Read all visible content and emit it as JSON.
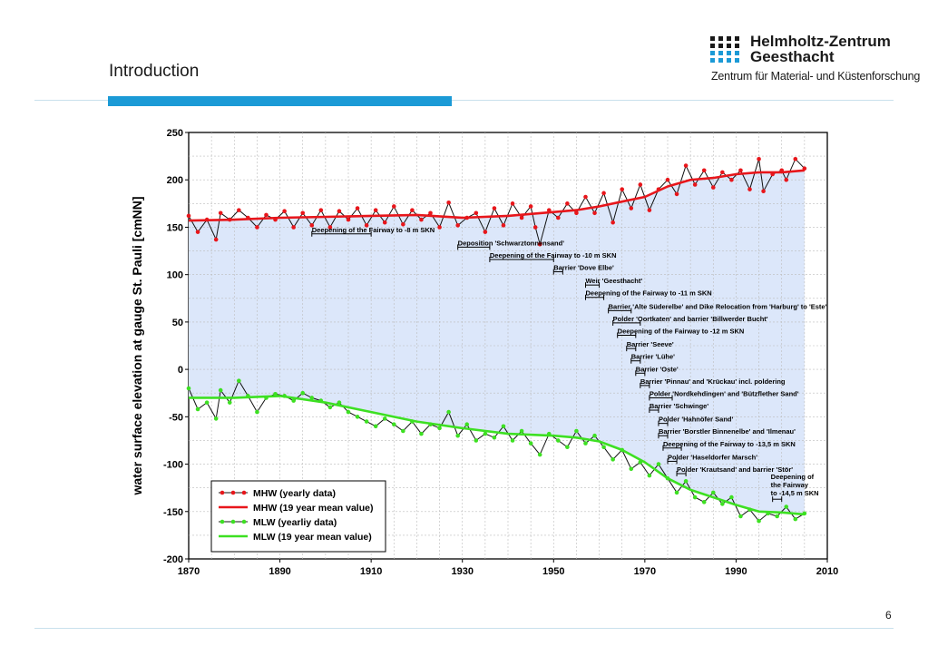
{
  "slide": {
    "title": "Introduction",
    "page_number": "6"
  },
  "logo": {
    "name_line1": "Helmholtz-Zentrum",
    "name_line2": "Geesthacht",
    "subtitle": "Zentrum für Material- und Küstenforschung"
  },
  "colors": {
    "accent": "#1b9ad6",
    "mhw": "#e8161b",
    "mlw": "#3de022",
    "fill_between": "#dce7fa"
  },
  "chart_data": {
    "type": "line",
    "xlim": [
      1870,
      2010
    ],
    "ylim": [
      -200,
      250
    ],
    "xticks": [
      1870,
      1890,
      1910,
      1930,
      1950,
      1970,
      1990,
      2010
    ],
    "yticks": [
      250,
      200,
      150,
      100,
      50,
      0,
      -50,
      -100,
      -150,
      -200
    ],
    "ylabel": "water surface elevation at gauge St. Pauli [cmNN]",
    "xlabel": "",
    "grid": true,
    "legend_position": "bottom-left",
    "fill_between_series": [
      "MHW (19 year mean value)",
      "MLW (19 year mean value)"
    ],
    "series": [
      {
        "name": "MHW (yearly data)",
        "style": "line-markers",
        "x": [
          1870,
          1872,
          1874,
          1876,
          1877,
          1879,
          1881,
          1883,
          1885,
          1887,
          1889,
          1891,
          1893,
          1895,
          1897,
          1899,
          1901,
          1903,
          1905,
          1907,
          1909,
          1911,
          1913,
          1915,
          1917,
          1919,
          1921,
          1923,
          1925,
          1927,
          1929,
          1931,
          1933,
          1935,
          1937,
          1939,
          1941,
          1943,
          1945,
          1946,
          1947,
          1949,
          1951,
          1953,
          1955,
          1957,
          1959,
          1961,
          1963,
          1965,
          1967,
          1969,
          1971,
          1973,
          1975,
          1977,
          1979,
          1981,
          1983,
          1985,
          1987,
          1989,
          1991,
          1993,
          1995,
          1996,
          1998,
          2000,
          2001,
          2003,
          2005
        ],
        "values": [
          162,
          145,
          158,
          137,
          165,
          158,
          168,
          160,
          150,
          163,
          158,
          167,
          150,
          165,
          152,
          168,
          150,
          167,
          158,
          170,
          152,
          168,
          155,
          172,
          153,
          168,
          158,
          165,
          150,
          176,
          152,
          160,
          165,
          145,
          170,
          152,
          175,
          160,
          172,
          150,
          132,
          168,
          160,
          175,
          165,
          182,
          165,
          186,
          155,
          190,
          170,
          195,
          168,
          190,
          200,
          185,
          215,
          195,
          210,
          192,
          208,
          200,
          210,
          190,
          222,
          188,
          206,
          210,
          200,
          222,
          212
        ]
      },
      {
        "name": "MHW (19 year mean value)",
        "style": "line",
        "x": [
          1870,
          1880,
          1890,
          1900,
          1910,
          1920,
          1930,
          1940,
          1950,
          1955,
          1960,
          1965,
          1970,
          1975,
          1980,
          1985,
          1990,
          1995,
          2000,
          2005
        ],
        "values": [
          157,
          158,
          160,
          161,
          162,
          163,
          160,
          162,
          166,
          168,
          172,
          177,
          182,
          193,
          200,
          202,
          206,
          208,
          208,
          210
        ]
      },
      {
        "name": "MLW (yearliy data)",
        "style": "line-markers",
        "x": [
          1870,
          1872,
          1874,
          1876,
          1877,
          1879,
          1881,
          1883,
          1885,
          1887,
          1889,
          1891,
          1893,
          1895,
          1897,
          1899,
          1901,
          1903,
          1905,
          1907,
          1909,
          1911,
          1913,
          1915,
          1917,
          1919,
          1921,
          1923,
          1925,
          1927,
          1929,
          1931,
          1933,
          1935,
          1937,
          1939,
          1941,
          1943,
          1945,
          1947,
          1949,
          1951,
          1953,
          1955,
          1957,
          1959,
          1961,
          1963,
          1965,
          1967,
          1969,
          1971,
          1973,
          1975,
          1977,
          1979,
          1981,
          1983,
          1985,
          1987,
          1989,
          1991,
          1993,
          1995,
          1997,
          1999,
          2001,
          2003,
          2005
        ],
        "values": [
          -20,
          -42,
          -35,
          -52,
          -22,
          -35,
          -12,
          -28,
          -45,
          -30,
          -26,
          -28,
          -33,
          -25,
          -30,
          -33,
          -40,
          -35,
          -45,
          -50,
          -55,
          -60,
          -52,
          -58,
          -65,
          -55,
          -68,
          -58,
          -62,
          -45,
          -70,
          -58,
          -75,
          -68,
          -72,
          -60,
          -75,
          -65,
          -78,
          -90,
          -68,
          -75,
          -82,
          -65,
          -78,
          -70,
          -82,
          -95,
          -85,
          -105,
          -98,
          -112,
          -100,
          -115,
          -130,
          -118,
          -135,
          -140,
          -130,
          -142,
          -135,
          -155,
          -148,
          -160,
          -152,
          -155,
          -145,
          -158,
          -152
        ]
      },
      {
        "name": "MLW (19 year mean value)",
        "style": "line",
        "x": [
          1870,
          1880,
          1890,
          1900,
          1910,
          1920,
          1930,
          1940,
          1950,
          1955,
          1960,
          1965,
          1970,
          1975,
          1980,
          1985,
          1990,
          1995,
          2000,
          2005
        ],
        "values": [
          -30,
          -30,
          -28,
          -35,
          -45,
          -55,
          -62,
          -68,
          -70,
          -72,
          -76,
          -85,
          -98,
          -115,
          -127,
          -135,
          -143,
          -150,
          -151,
          -153
        ]
      }
    ],
    "annotations": [
      {
        "text": "Deepening of the Fairway to -8 m SKN",
        "x1": 1897,
        "x2": 1910,
        "y": 143
      },
      {
        "text": "Deposition 'Schwarztonnensand'",
        "x1": 1929,
        "x2": 1936,
        "y": 129
      },
      {
        "text": "Deepening of the Fairway to -10 m SKN",
        "x1": 1936,
        "x2": 1950,
        "y": 116
      },
      {
        "text": "Barrier 'Dove Elbe'",
        "x1": 1950,
        "x2": 1952,
        "y": 103
      },
      {
        "text": "Weir 'Geesthacht'",
        "x1": 1957,
        "x2": 1960,
        "y": 89
      },
      {
        "text": "Deepening of the Fairway to -11 m SKN",
        "x1": 1957,
        "x2": 1961,
        "y": 76
      },
      {
        "text": "Barrier 'Alte Süderelbe' and Dike Relocation from 'Harburg' to 'Este'",
        "x1": 1962,
        "x2": 1967,
        "y": 62
      },
      {
        "text": "Polder 'Oortkaten' and barrier 'Billwerder Bucht'",
        "x1": 1963,
        "x2": 1969,
        "y": 49
      },
      {
        "text": "Deepening of the Fairway to -12 m SKN",
        "x1": 1964,
        "x2": 1968,
        "y": 36
      },
      {
        "text": "Barrier 'Seeve'",
        "x1": 1966,
        "x2": 1968,
        "y": 22
      },
      {
        "text": "Barrier 'Lühe'",
        "x1": 1967,
        "x2": 1969,
        "y": 9
      },
      {
        "text": "Barrier 'Oste'",
        "x1": 1968,
        "x2": 1970,
        "y": -4
      },
      {
        "text": "Barrier 'Pinnau' and 'Krückau' incl. poldering",
        "x1": 1969,
        "x2": 1971,
        "y": -17
      },
      {
        "text": "Polder 'Nordkehdingen' and 'Bützflether Sand'",
        "x1": 1971,
        "x2": 1976,
        "y": -30
      },
      {
        "text": "Barrier 'Schwinge'",
        "x1": 1971,
        "x2": 1973,
        "y": -43
      },
      {
        "text": "Polder 'Hahnöfer Sand'",
        "x1": 1973,
        "x2": 1975,
        "y": -57
      },
      {
        "text": "Barrier 'Borstler Binnenelbe' and 'Ilmenau'",
        "x1": 1973,
        "x2": 1975,
        "y": -70
      },
      {
        "text": "Deepening of the Fairway to -13,5 m SKN",
        "x1": 1974,
        "x2": 1978,
        "y": -83
      },
      {
        "text": "Polder 'Haseldorfer Marsch'",
        "x1": 1975,
        "x2": 1977,
        "y": -97
      },
      {
        "text": "Polder 'Krautsand' and barrier 'Stör'",
        "x1": 1977,
        "x2": 1979,
        "y": -110
      },
      {
        "text": "Deepening of the Fairway to -14,5 m SKN",
        "x1": 1998,
        "x2": 2000,
        "y": -137,
        "lines": [
          "Deepening of",
          "the Fairway",
          "to -14,5 m SKN"
        ]
      }
    ]
  }
}
